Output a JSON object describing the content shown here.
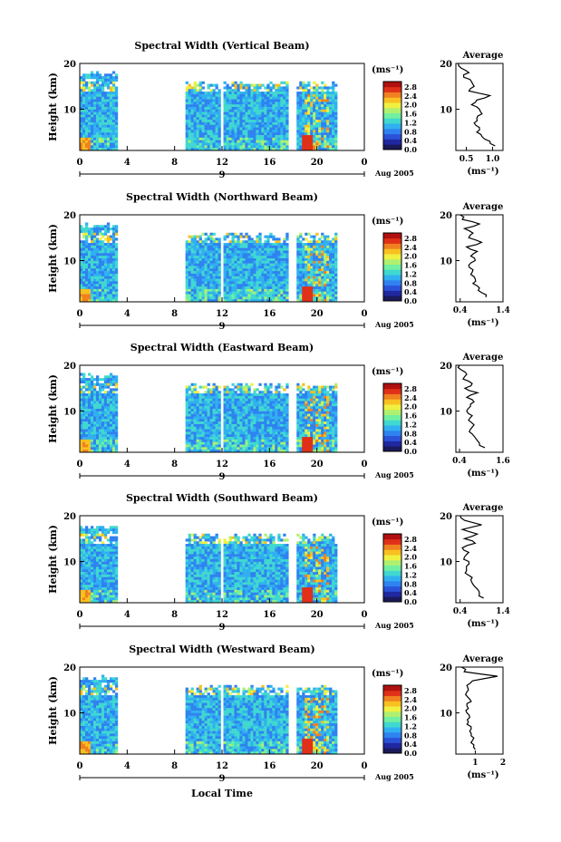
{
  "figure": {
    "xlabel": "Local Time",
    "date_label": "Aug 2005",
    "day_label": "9",
    "colorbar_unit": "(ms⁻¹)",
    "colorbar_ticks": [
      "2.8",
      "2.4",
      "2.0",
      "1.6",
      "1.2",
      "0.8",
      "0.4",
      "0.0"
    ],
    "colorscale": [
      "#1a1a5a",
      "#2028a0",
      "#2a52d8",
      "#2f82f0",
      "#30b0f0",
      "#40d8d0",
      "#70f0a0",
      "#b0f070",
      "#f0f040",
      "#f8c020",
      "#f08020",
      "#e03018",
      "#b01010"
    ],
    "average_title": "Average",
    "average_xlabel": "(ms⁻¹)",
    "ylabel": "Height (km)"
  },
  "chart_data": [
    {
      "type": "heatmap",
      "title": "Spectral Width (Vertical Beam)",
      "ylabel": "Height (km)",
      "xlabel": "Local Time",
      "x_ticks": [
        "0",
        "4",
        "8",
        "12",
        "16",
        "20",
        "0"
      ],
      "y_ticks": [
        "20",
        "10"
      ],
      "xlim": [
        0,
        24
      ],
      "ylim": [
        1,
        20
      ],
      "data_gaps_hours": [
        [
          3.2,
          8.8
        ],
        [
          11.9,
          12.2
        ],
        [
          17.7,
          18.2
        ]
      ],
      "colorbar_range": [
        0.0,
        2.8
      ],
      "average_profile": {
        "title": "Average",
        "xlabel": "(ms⁻¹)",
        "x_ticks": [
          "0.5",
          "1.0"
        ],
        "xlim": [
          0.3,
          1.2
        ],
        "heights_km": [
          2,
          3,
          4,
          5,
          6,
          7,
          8,
          9,
          10,
          11,
          12,
          13,
          14,
          15,
          16,
          17,
          18,
          19,
          20
        ],
        "values": [
          1.05,
          0.95,
          0.8,
          0.7,
          0.75,
          0.65,
          0.7,
          0.8,
          0.75,
          0.6,
          0.7,
          0.95,
          0.55,
          0.65,
          0.6,
          0.45,
          0.55,
          0.4,
          0.35
        ]
      }
    },
    {
      "type": "heatmap",
      "title": "Spectral Width (Northward Beam)",
      "ylabel": "Height (km)",
      "xlabel": "Local Time",
      "x_ticks": [
        "0",
        "4",
        "8",
        "12",
        "16",
        "20",
        "0"
      ],
      "y_ticks": [
        "20",
        "10"
      ],
      "xlim": [
        0,
        24
      ],
      "ylim": [
        1,
        20
      ],
      "data_gaps_hours": [
        [
          3.2,
          8.8
        ],
        [
          11.9,
          12.2
        ],
        [
          17.7,
          18.2
        ]
      ],
      "colorbar_range": [
        0.0,
        2.8
      ],
      "average_profile": {
        "title": "Average",
        "xlabel": "(ms⁻¹)",
        "x_ticks": [
          "0.4",
          "1.4"
        ],
        "xlim": [
          0.3,
          1.4
        ],
        "heights_km": [
          2,
          3,
          4,
          5,
          6,
          7,
          8,
          9,
          10,
          11,
          12,
          13,
          14,
          15,
          16,
          17,
          18,
          19,
          20
        ],
        "values": [
          1.0,
          0.9,
          0.85,
          0.7,
          0.75,
          0.65,
          0.7,
          0.6,
          0.75,
          0.65,
          0.8,
          0.55,
          0.9,
          0.6,
          0.7,
          0.5,
          0.85,
          0.45,
          0.4
        ]
      }
    },
    {
      "type": "heatmap",
      "title": "Spectral Width (Eastward Beam)",
      "ylabel": "Height (km)",
      "xlabel": "Local Time",
      "x_ticks": [
        "0",
        "4",
        "8",
        "12",
        "16",
        "20",
        "0"
      ],
      "y_ticks": [
        "20",
        "10"
      ],
      "xlim": [
        0,
        24
      ],
      "ylim": [
        1,
        20
      ],
      "data_gaps_hours": [
        [
          3.2,
          8.8
        ],
        [
          11.9,
          12.2
        ],
        [
          17.7,
          18.2
        ]
      ],
      "colorbar_range": [
        0.0,
        2.8
      ],
      "average_profile": {
        "title": "Average",
        "xlabel": "(ms⁻¹)",
        "x_ticks": [
          "0.4",
          "1.6"
        ],
        "xlim": [
          0.3,
          1.6
        ],
        "heights_km": [
          2,
          3,
          4,
          5,
          6,
          7,
          8,
          9,
          10,
          11,
          12,
          13,
          14,
          15,
          16,
          17,
          18,
          19,
          20
        ],
        "values": [
          1.1,
          0.95,
          0.85,
          0.75,
          0.7,
          0.8,
          0.65,
          0.75,
          0.6,
          0.7,
          0.8,
          0.6,
          0.9,
          0.55,
          0.75,
          0.5,
          0.6,
          0.45,
          0.4
        ]
      }
    },
    {
      "type": "heatmap",
      "title": "Spectral Width (Southward Beam)",
      "ylabel": "Height (km)",
      "xlabel": "Local Time",
      "x_ticks": [
        "0",
        "4",
        "8",
        "12",
        "16",
        "20",
        "0"
      ],
      "y_ticks": [
        "20",
        "10"
      ],
      "xlim": [
        0,
        24
      ],
      "ylim": [
        1,
        20
      ],
      "data_gaps_hours": [
        [
          3.2,
          8.8
        ],
        [
          11.9,
          12.2
        ],
        [
          17.7,
          18.2
        ]
      ],
      "colorbar_range": [
        0.0,
        2.8
      ],
      "average_profile": {
        "title": "Average",
        "xlabel": "(ms⁻¹)",
        "x_ticks": [
          "0.4",
          "1.4"
        ],
        "xlim": [
          0.3,
          1.4
        ],
        "heights_km": [
          2,
          3,
          4,
          5,
          6,
          7,
          8,
          9,
          10,
          11,
          12,
          13,
          14,
          15,
          16,
          17,
          18,
          19,
          20
        ],
        "values": [
          0.95,
          0.85,
          0.8,
          0.7,
          0.65,
          0.6,
          0.55,
          0.55,
          0.6,
          0.5,
          0.6,
          0.45,
          0.75,
          0.5,
          0.8,
          0.45,
          0.9,
          0.5,
          0.4
        ]
      }
    },
    {
      "type": "heatmap",
      "title": "Spectral Width (Westward Beam)",
      "ylabel": "Height (km)",
      "xlabel": "Local Time",
      "x_ticks": [
        "0",
        "4",
        "8",
        "12",
        "16",
        "20",
        "0"
      ],
      "y_ticks": [
        "20",
        "10"
      ],
      "xlim": [
        0,
        24
      ],
      "ylim": [
        1,
        20
      ],
      "data_gaps_hours": [
        [
          3.2,
          8.8
        ],
        [
          11.9,
          12.2
        ],
        [
          17.7,
          18.2
        ]
      ],
      "colorbar_range": [
        0.0,
        2.8
      ],
      "average_profile": {
        "title": "Average",
        "xlabel": "(ms⁻¹)",
        "x_ticks": [
          "1",
          "2"
        ],
        "xlim": [
          0.3,
          2.0
        ],
        "heights_km": [
          2,
          3,
          4,
          5,
          6,
          7,
          8,
          9,
          10,
          11,
          12,
          13,
          14,
          15,
          16,
          17,
          18,
          19,
          20
        ],
        "values": [
          1.0,
          0.95,
          0.9,
          0.85,
          0.8,
          0.85,
          0.75,
          0.8,
          0.7,
          0.75,
          0.7,
          0.8,
          0.65,
          0.75,
          0.7,
          0.9,
          1.8,
          0.6,
          0.5
        ]
      }
    }
  ]
}
